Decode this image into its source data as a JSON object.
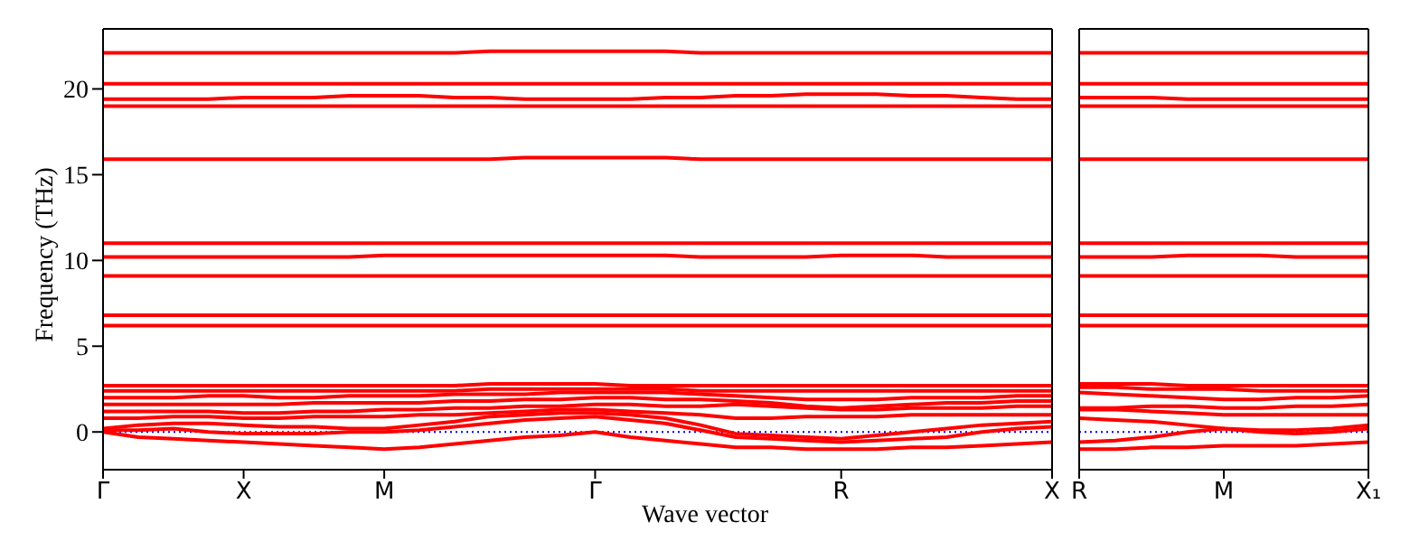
{
  "chart_data": [
    {
      "type": "line",
      "xlabel": "Wave vector",
      "ylabel": "Frequency (THz)",
      "ylim": [
        -2.2,
        23.5
      ],
      "yticks": [
        0,
        5,
        10,
        15,
        20
      ],
      "categories": [
        "Γ",
        null,
        null,
        null,
        "X",
        null,
        null,
        null,
        "M",
        null,
        null,
        null,
        null,
        null,
        "Γ",
        null,
        null,
        null,
        null,
        null,
        null,
        "R",
        null,
        null,
        null,
        null,
        null,
        "X"
      ],
      "marker": "none",
      "line_style": "solid",
      "ref_lines": [
        {
          "axis": "y",
          "value": 0,
          "color": "#0000ff",
          "line_style": "dotted"
        }
      ],
      "series": [
        {
          "color": "#ff0000",
          "values": [
            0,
            -0.3,
            -0.4,
            -0.5,
            -0.6,
            -0.7,
            -0.8,
            -0.9,
            -1.0,
            -0.9,
            -0.7,
            -0.5,
            -0.3,
            -0.2,
            0,
            -0.3,
            -0.5,
            -0.7,
            -0.9,
            -0.9,
            -1.0,
            -1.0,
            -1.0,
            -0.9,
            -0.9,
            -0.8,
            -0.7,
            -0.6
          ]
        },
        {
          "color": "#ff0000",
          "values": [
            0.1,
            0.1,
            0.2,
            0,
            -0.1,
            -0.1,
            -0.1,
            0,
            0,
            0.1,
            0.3,
            0.5,
            0.7,
            0.8,
            0.9,
            0.7,
            0.5,
            0.1,
            -0.3,
            -0.4,
            -0.5,
            -0.6,
            -0.5,
            -0.4,
            -0.3,
            0,
            0.2,
            0.3
          ]
        },
        {
          "color": "#ff0000",
          "values": [
            0.2,
            0.4,
            0.5,
            0.5,
            0.4,
            0.3,
            0.3,
            0.2,
            0.2,
            0.4,
            0.6,
            0.9,
            1.0,
            1.1,
            1.1,
            1.0,
            0.8,
            0.4,
            -0.1,
            -0.2,
            -0.3,
            -0.4,
            -0.2,
            0,
            0.2,
            0.4,
            0.5,
            0.6
          ]
        },
        {
          "color": "#ff0000",
          "values": [
            0.8,
            0.8,
            0.9,
            0.9,
            0.8,
            0.8,
            0.9,
            0.9,
            0.9,
            1.0,
            1.0,
            1.1,
            1.2,
            1.3,
            1.3,
            1.2,
            1.1,
            1.0,
            0.8,
            0.8,
            0.9,
            0.9,
            0.9,
            1.0,
            1.0,
            1.0,
            1.0,
            1.0
          ]
        },
        {
          "color": "#ff0000",
          "values": [
            1.2,
            1.2,
            1.2,
            1.2,
            1.1,
            1.1,
            1.2,
            1.2,
            1.3,
            1.3,
            1.4,
            1.4,
            1.5,
            1.5,
            1.6,
            1.6,
            1.5,
            1.5,
            1.6,
            1.5,
            1.4,
            1.3,
            1.3,
            1.4,
            1.4,
            1.4,
            1.5,
            1.5
          ]
        },
        {
          "color": "#ff0000",
          "values": [
            1.6,
            1.6,
            1.6,
            1.6,
            1.6,
            1.6,
            1.7,
            1.7,
            1.7,
            1.7,
            1.8,
            1.8,
            1.9,
            1.9,
            2.0,
            2.0,
            1.9,
            1.9,
            1.8,
            1.7,
            1.5,
            1.4,
            1.5,
            1.6,
            1.7,
            1.7,
            1.8,
            1.8
          ]
        },
        {
          "color": "#ff0000",
          "values": [
            2.0,
            2.0,
            2.0,
            2.1,
            2.1,
            2.0,
            2.0,
            2.1,
            2.1,
            2.1,
            2.2,
            2.2,
            2.2,
            2.3,
            2.3,
            2.3,
            2.3,
            2.2,
            2.1,
            2.0,
            1.9,
            1.9,
            1.9,
            2.0,
            2.0,
            2.0,
            2.1,
            2.1
          ]
        },
        {
          "color": "#ff0000",
          "values": [
            2.4,
            2.4,
            2.4,
            2.4,
            2.4,
            2.4,
            2.4,
            2.4,
            2.4,
            2.4,
            2.4,
            2.5,
            2.5,
            2.5,
            2.5,
            2.5,
            2.5,
            2.4,
            2.4,
            2.4,
            2.4,
            2.4,
            2.4,
            2.4,
            2.4,
            2.4,
            2.4,
            2.4
          ]
        },
        {
          "color": "#ff0000",
          "values": [
            2.7,
            2.7,
            2.7,
            2.7,
            2.7,
            2.7,
            2.7,
            2.7,
            2.7,
            2.7,
            2.7,
            2.8,
            2.8,
            2.8,
            2.8,
            2.7,
            2.7,
            2.7,
            2.7,
            2.7,
            2.7,
            2.7,
            2.7,
            2.7,
            2.7,
            2.7,
            2.7,
            2.7
          ]
        },
        {
          "color": "#ff0000",
          "values": [
            6.2,
            6.2,
            6.2,
            6.2,
            6.2,
            6.2,
            6.2,
            6.2,
            6.2,
            6.2,
            6.2,
            6.2,
            6.2,
            6.2,
            6.2,
            6.2,
            6.2,
            6.2,
            6.2,
            6.2,
            6.2,
            6.2,
            6.2,
            6.2,
            6.2,
            6.2,
            6.2,
            6.2
          ]
        },
        {
          "color": "#ff0000",
          "values": [
            6.8,
            6.8,
            6.8,
            6.8,
            6.8,
            6.8,
            6.8,
            6.8,
            6.8,
            6.8,
            6.8,
            6.8,
            6.8,
            6.8,
            6.8,
            6.8,
            6.8,
            6.8,
            6.8,
            6.8,
            6.8,
            6.8,
            6.8,
            6.8,
            6.8,
            6.8,
            6.8,
            6.8
          ]
        },
        {
          "color": "#ff0000",
          "values": [
            9.1,
            9.1,
            9.1,
            9.1,
            9.1,
            9.1,
            9.1,
            9.1,
            9.1,
            9.1,
            9.1,
            9.1,
            9.1,
            9.1,
            9.1,
            9.1,
            9.1,
            9.1,
            9.1,
            9.1,
            9.1,
            9.1,
            9.1,
            9.1,
            9.1,
            9.1,
            9.1,
            9.1
          ]
        },
        {
          "color": "#ff0000",
          "values": [
            10.2,
            10.2,
            10.2,
            10.2,
            10.2,
            10.2,
            10.2,
            10.2,
            10.3,
            10.3,
            10.3,
            10.3,
            10.3,
            10.3,
            10.3,
            10.3,
            10.3,
            10.2,
            10.2,
            10.2,
            10.2,
            10.3,
            10.3,
            10.3,
            10.2,
            10.2,
            10.2,
            10.2
          ]
        },
        {
          "color": "#ff0000",
          "values": [
            11.0,
            11.0,
            11.0,
            11.0,
            11.0,
            11.0,
            11.0,
            11.0,
            11.0,
            11.0,
            11.0,
            11.0,
            11.0,
            11.0,
            11.0,
            11.0,
            11.0,
            11.0,
            11.0,
            11.0,
            11.0,
            11.0,
            11.0,
            11.0,
            11.0,
            11.0,
            11.0,
            11.0
          ]
        },
        {
          "color": "#ff0000",
          "values": [
            15.9,
            15.9,
            15.9,
            15.9,
            15.9,
            15.9,
            15.9,
            15.9,
            15.9,
            15.9,
            15.9,
            15.9,
            16.0,
            16.0,
            16.0,
            16.0,
            16.0,
            15.9,
            15.9,
            15.9,
            15.9,
            15.9,
            15.9,
            15.9,
            15.9,
            15.9,
            15.9,
            15.9
          ]
        },
        {
          "color": "#ff0000",
          "values": [
            19.0,
            19.0,
            19.0,
            19.0,
            19.0,
            19.0,
            19.0,
            19.0,
            19.0,
            19.0,
            19.0,
            19.0,
            19.0,
            19.0,
            19.0,
            19.0,
            19.0,
            19.0,
            19.0,
            19.0,
            19.0,
            19.0,
            19.0,
            19.0,
            19.0,
            19.0,
            19.0,
            19.0
          ]
        },
        {
          "color": "#ff0000",
          "values": [
            19.4,
            19.4,
            19.4,
            19.4,
            19.5,
            19.5,
            19.5,
            19.6,
            19.6,
            19.6,
            19.5,
            19.5,
            19.4,
            19.4,
            19.4,
            19.4,
            19.5,
            19.5,
            19.6,
            19.6,
            19.7,
            19.7,
            19.7,
            19.6,
            19.6,
            19.5,
            19.4,
            19.4
          ]
        },
        {
          "color": "#ff0000",
          "values": [
            20.3,
            20.3,
            20.3,
            20.3,
            20.3,
            20.3,
            20.3,
            20.3,
            20.3,
            20.3,
            20.3,
            20.3,
            20.3,
            20.3,
            20.3,
            20.3,
            20.3,
            20.3,
            20.3,
            20.3,
            20.3,
            20.3,
            20.3,
            20.3,
            20.3,
            20.3,
            20.3,
            20.3
          ]
        },
        {
          "color": "#ff0000",
          "values": [
            22.1,
            22.1,
            22.1,
            22.1,
            22.1,
            22.1,
            22.1,
            22.1,
            22.1,
            22.1,
            22.1,
            22.2,
            22.2,
            22.2,
            22.2,
            22.2,
            22.2,
            22.1,
            22.1,
            22.1,
            22.1,
            22.1,
            22.1,
            22.1,
            22.1,
            22.1,
            22.1,
            22.1
          ]
        }
      ]
    },
    {
      "type": "line",
      "ylim": [
        -2.2,
        23.5
      ],
      "tick_labels": "x",
      "categories": [
        "R",
        null,
        null,
        null,
        "M",
        null,
        null,
        null,
        "X₁"
      ],
      "marker": "none",
      "line_style": "solid",
      "ref_lines": [
        {
          "axis": "y",
          "value": 0,
          "color": "#0000ff",
          "line_style": "dotted"
        }
      ],
      "series": [
        {
          "color": "#ff0000",
          "values": [
            -1.0,
            -1.0,
            -0.9,
            -0.9,
            -0.8,
            -0.8,
            -0.8,
            -0.7,
            -0.6
          ]
        },
        {
          "color": "#ff0000",
          "values": [
            -0.6,
            -0.5,
            -0.3,
            0,
            0.2,
            0,
            -0.1,
            0,
            0.2
          ]
        },
        {
          "color": "#ff0000",
          "values": [
            0.8,
            0.7,
            0.6,
            0.4,
            0.2,
            0.1,
            0.1,
            0.2,
            0.4
          ]
        },
        {
          "color": "#ff0000",
          "values": [
            1.3,
            1.3,
            1.2,
            1.1,
            1.0,
            1.0,
            1.0,
            1.0,
            1.0
          ]
        },
        {
          "color": "#ff0000",
          "values": [
            1.4,
            1.4,
            1.5,
            1.5,
            1.4,
            1.4,
            1.5,
            1.5,
            1.6
          ]
        },
        {
          "color": "#ff0000",
          "values": [
            2.3,
            2.2,
            2.1,
            2.0,
            1.9,
            1.9,
            2.0,
            2.0,
            2.1
          ]
        },
        {
          "color": "#ff0000",
          "values": [
            2.6,
            2.6,
            2.5,
            2.5,
            2.5,
            2.4,
            2.4,
            2.4,
            2.4
          ]
        },
        {
          "color": "#ff0000",
          "values": [
            2.8,
            2.8,
            2.8,
            2.7,
            2.7,
            2.7,
            2.7,
            2.7,
            2.7
          ]
        },
        {
          "color": "#ff0000",
          "values": [
            6.2,
            6.2,
            6.2,
            6.2,
            6.2,
            6.2,
            6.2,
            6.2,
            6.2
          ]
        },
        {
          "color": "#ff0000",
          "values": [
            6.8,
            6.8,
            6.8,
            6.8,
            6.8,
            6.8,
            6.8,
            6.8,
            6.8
          ]
        },
        {
          "color": "#ff0000",
          "values": [
            9.1,
            9.1,
            9.1,
            9.1,
            9.1,
            9.1,
            9.1,
            9.1,
            9.1
          ]
        },
        {
          "color": "#ff0000",
          "values": [
            10.2,
            10.2,
            10.2,
            10.3,
            10.3,
            10.3,
            10.2,
            10.2,
            10.2
          ]
        },
        {
          "color": "#ff0000",
          "values": [
            11.0,
            11.0,
            11.0,
            11.0,
            11.0,
            11.0,
            11.0,
            11.0,
            11.0
          ]
        },
        {
          "color": "#ff0000",
          "values": [
            15.9,
            15.9,
            15.9,
            15.9,
            15.9,
            15.9,
            15.9,
            15.9,
            15.9
          ]
        },
        {
          "color": "#ff0000",
          "values": [
            19.0,
            19.0,
            19.0,
            19.0,
            19.0,
            19.0,
            19.0,
            19.0,
            19.0
          ]
        },
        {
          "color": "#ff0000",
          "values": [
            19.5,
            19.5,
            19.5,
            19.4,
            19.4,
            19.4,
            19.4,
            19.4,
            19.4
          ]
        },
        {
          "color": "#ff0000",
          "values": [
            20.3,
            20.3,
            20.3,
            20.3,
            20.3,
            20.3,
            20.3,
            20.3,
            20.3
          ]
        },
        {
          "color": "#ff0000",
          "values": [
            22.1,
            22.1,
            22.1,
            22.1,
            22.1,
            22.1,
            22.1,
            22.1,
            22.1
          ]
        }
      ]
    }
  ]
}
